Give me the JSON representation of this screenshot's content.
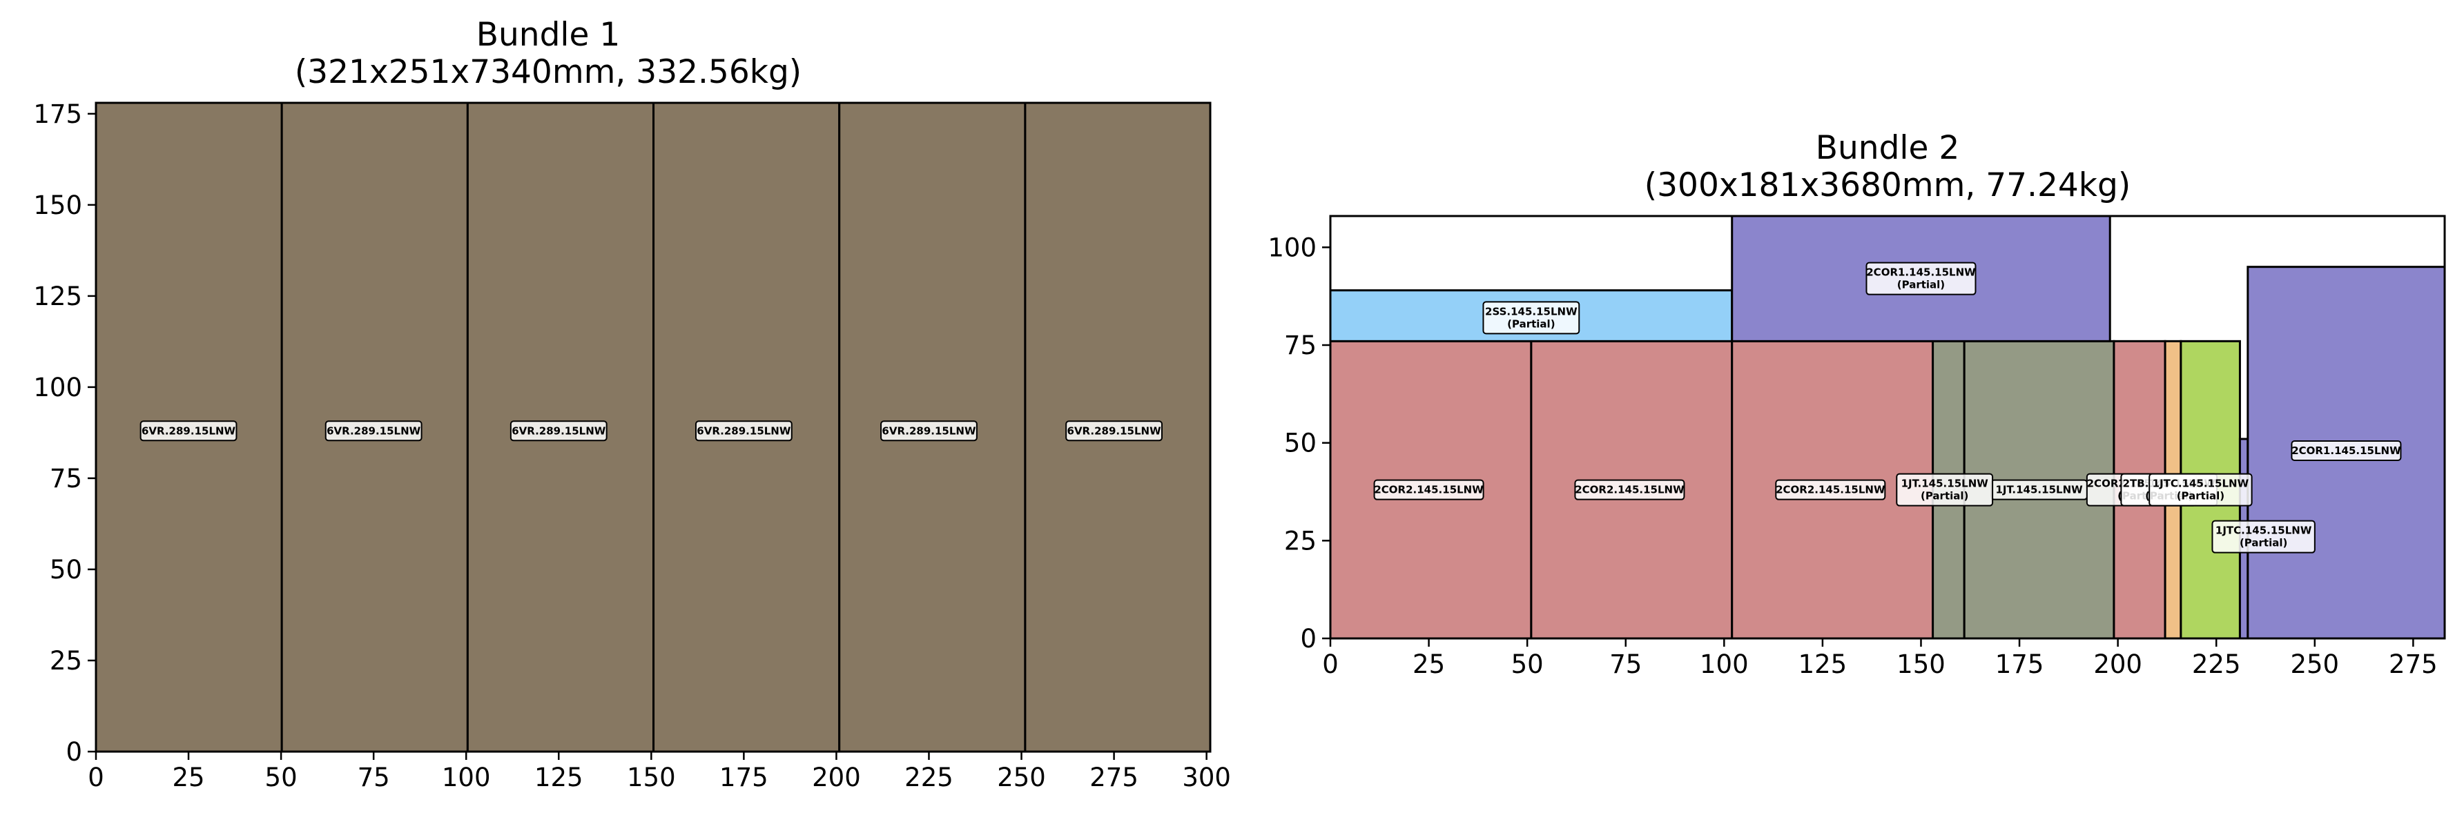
{
  "chart_data": [
    {
      "type": "bar",
      "title": "Bundle 1",
      "subtitle": "(321x251x7340mm, 332.56kg)",
      "xlabel": "",
      "ylabel": "",
      "xlim": [
        0,
        301
      ],
      "ylim": [
        0,
        178
      ],
      "xticks": [
        0,
        25,
        50,
        75,
        100,
        125,
        150,
        175,
        200,
        225,
        250,
        275,
        300
      ],
      "yticks": [
        0,
        25,
        50,
        75,
        100,
        125,
        150,
        175
      ],
      "grid": false,
      "pieces": [
        {
          "label": "6VR.289.15LNW",
          "x": 0,
          "y": 0,
          "w": 50.2,
          "h": 178,
          "color": "#877862",
          "lx": 25,
          "ly": 88
        },
        {
          "label": "6VR.289.15LNW",
          "x": 50.2,
          "y": 0,
          "w": 50.2,
          "h": 178,
          "color": "#877862",
          "lx": 75,
          "ly": 88
        },
        {
          "label": "6VR.289.15LNW",
          "x": 100.4,
          "y": 0,
          "w": 50.2,
          "h": 178,
          "color": "#877862",
          "lx": 125,
          "ly": 88
        },
        {
          "label": "6VR.289.15LNW",
          "x": 150.6,
          "y": 0,
          "w": 50.2,
          "h": 178,
          "color": "#877862",
          "lx": 175,
          "ly": 88
        },
        {
          "label": "6VR.289.15LNW",
          "x": 200.8,
          "y": 0,
          "w": 50.2,
          "h": 178,
          "color": "#877862",
          "lx": 225,
          "ly": 88
        },
        {
          "label": "6VR.289.15LNW",
          "x": 251,
          "y": 0,
          "w": 50,
          "h": 178,
          "color": "#877862",
          "lx": 275,
          "ly": 88
        }
      ]
    },
    {
      "type": "bar",
      "title": "Bundle 2",
      "subtitle": "(300x181x3680mm, 77.24kg)",
      "xlabel": "",
      "ylabel": "",
      "xlim": [
        0,
        283
      ],
      "ylim": [
        0,
        108
      ],
      "xticks": [
        0,
        25,
        50,
        75,
        100,
        125,
        150,
        175,
        200,
        225,
        250,
        275
      ],
      "yticks": [
        0,
        25,
        50,
        75,
        100
      ],
      "grid": false,
      "pieces": [
        {
          "label": "2COR2.145.15LNW",
          "x": 0,
          "y": 0,
          "w": 51,
          "h": 76,
          "color": "#d08b8b",
          "lx": 25,
          "ly": 38
        },
        {
          "label": "2COR2.145.15LNW",
          "x": 51,
          "y": 0,
          "w": 51,
          "h": 76,
          "color": "#d08b8b",
          "lx": 76,
          "ly": 38
        },
        {
          "label": "2COR2.145.15LNW",
          "x": 102,
          "y": 0,
          "w": 51,
          "h": 76,
          "color": "#d08b8b",
          "lx": 127,
          "ly": 38
        },
        {
          "label": "1JT.145.15LNW",
          "x": 153,
          "y": 0,
          "w": 8,
          "h": 76,
          "color": "#949a85",
          "lx": 180,
          "ly": 38
        },
        {
          "label": "1JT.145.15LNW",
          "sublabel": "(Partial)",
          "x": 161,
          "y": 0,
          "w": 38,
          "h": 76,
          "color": "#949a85",
          "lx": 156,
          "ly": 38
        },
        {
          "label": "2COR2.145.15LNW",
          "sublabel": "(Partial)",
          "x": 199,
          "y": 0,
          "w": 13,
          "h": 76,
          "color": "#d08b8b",
          "lx": 206,
          "ly": 38
        },
        {
          "label": "2TB.145.15LNW",
          "sublabel": "(Partial)",
          "x": 212,
          "y": 0,
          "w": 4,
          "h": 76,
          "color": "#f0c087",
          "lx": 213,
          "ly": 38
        },
        {
          "label": "1JTC.145.15LNW",
          "sublabel": "(Partial)",
          "x": 216,
          "y": 0,
          "w": 15,
          "h": 76,
          "color": "#afd660",
          "lx": 221,
          "ly": 38
        },
        {
          "label": "1JTC.145.15LNW",
          "sublabel": "(Partial)",
          "x": 231,
          "y": 0,
          "w": 2,
          "h": 51,
          "color": "#8b85cc",
          "lx": 237,
          "ly": 26
        },
        {
          "label": "2COR1.145.15LNW",
          "x": 233,
          "y": 0,
          "w": 50,
          "h": 95,
          "color": "#8b85cc",
          "lx": 258,
          "ly": 48
        },
        {
          "label": "2SS.145.15LNW",
          "sublabel": "(Partial)",
          "x": 0,
          "y": 76,
          "w": 102,
          "h": 13,
          "color": "#94d0f8",
          "lx": 51,
          "ly": 82
        },
        {
          "label": "2COR1.145.15LNW",
          "sublabel": "(Partial)",
          "x": 102,
          "y": 76,
          "w": 96,
          "h": 32,
          "color": "#8b85cc",
          "lx": 150,
          "ly": 92
        }
      ]
    }
  ]
}
